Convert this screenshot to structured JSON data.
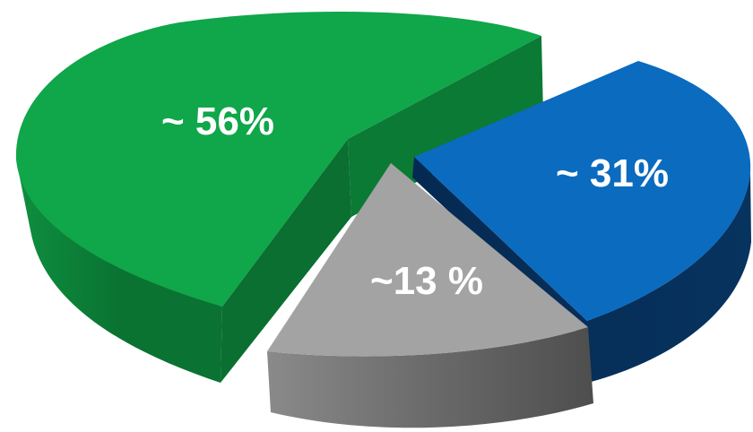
{
  "chart_data": {
    "type": "pie",
    "style": "3d-exploded",
    "categories": [
      "",
      "",
      ""
    ],
    "values": [
      56,
      31,
      13
    ],
    "labels": [
      "~ 56%",
      "~ 31%",
      "~13 %"
    ],
    "colors": {
      "green_top": "#10a64a",
      "green_side": "#0b7a35",
      "blue_top": "#0a6bbf",
      "blue_side": "#062e5a",
      "gray_top": "#a3a3a3",
      "gray_side": "#5d5d5d"
    },
    "legend": "none",
    "title": ""
  }
}
